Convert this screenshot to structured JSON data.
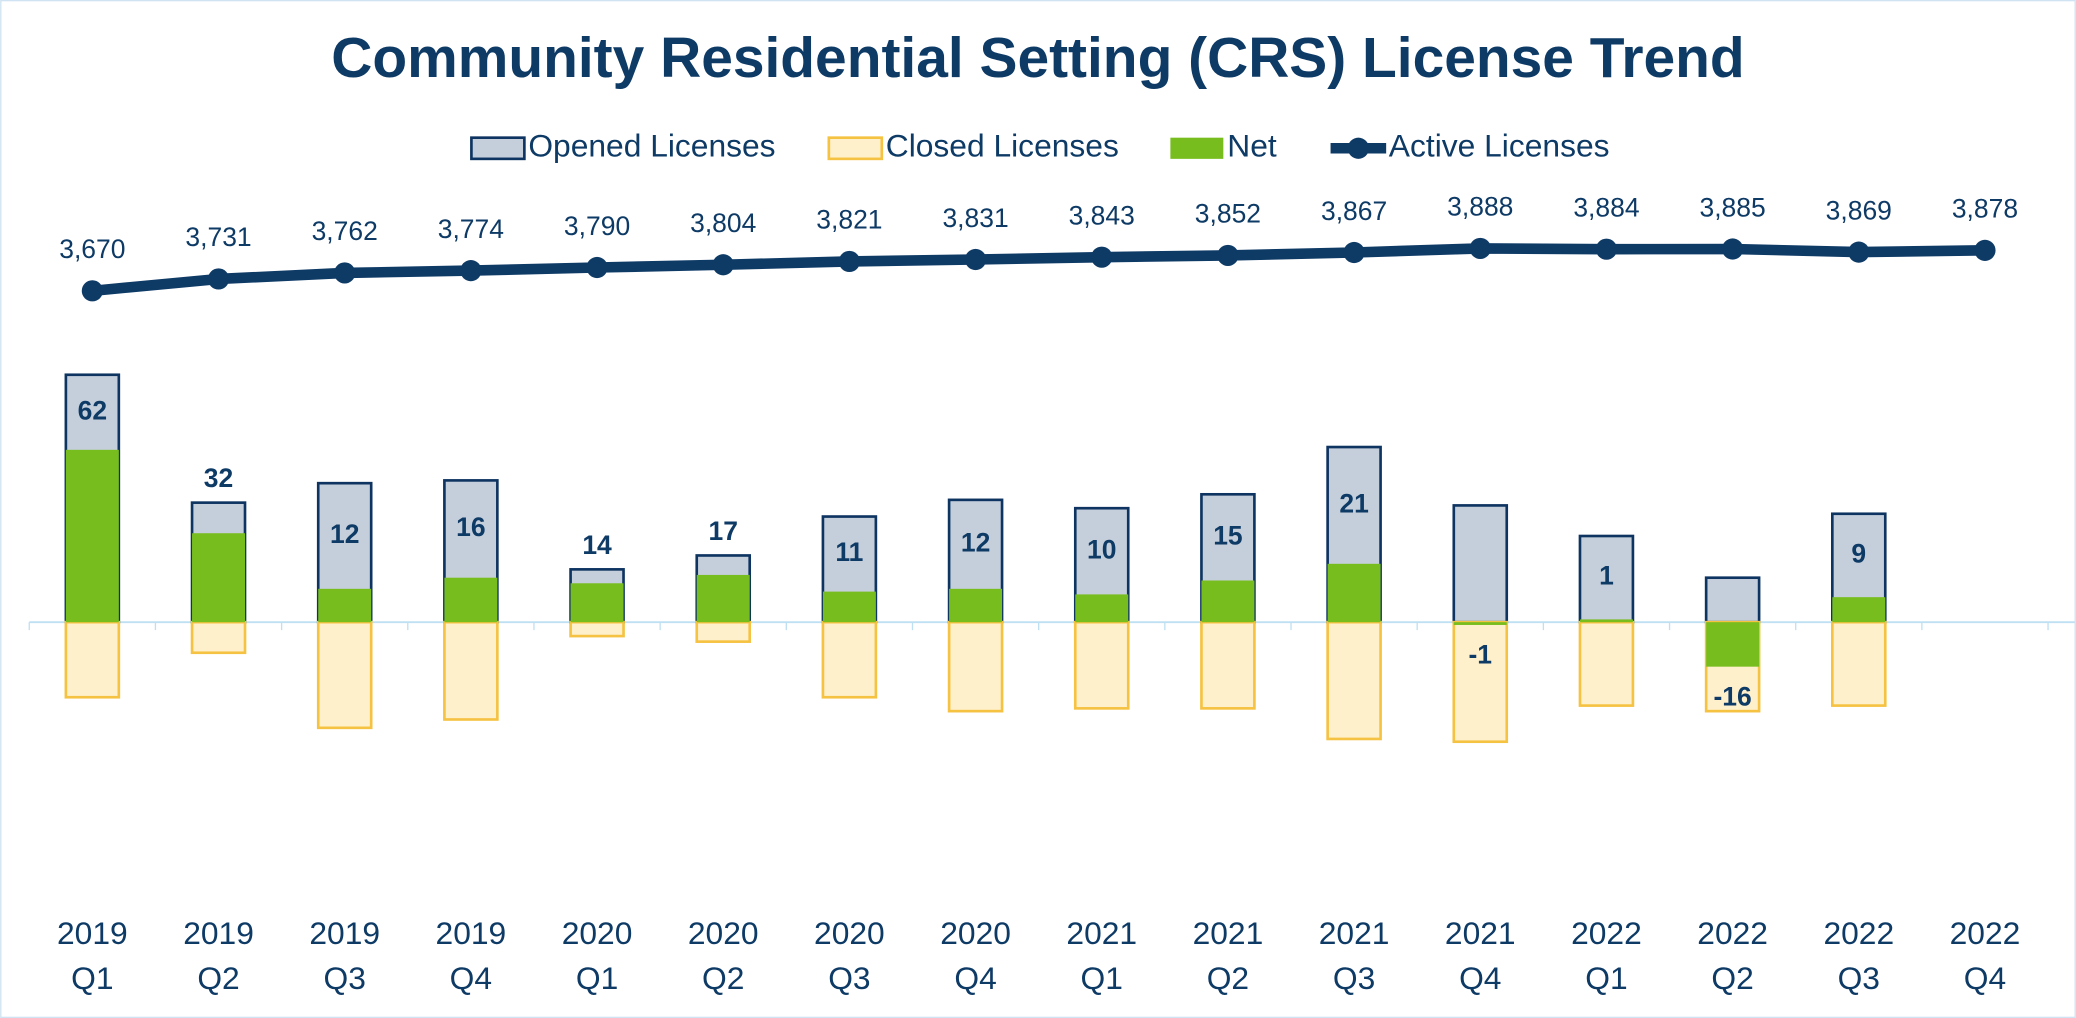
{
  "chart_data": {
    "type": "bar-line",
    "title": "Community Residential Setting (CRS) License Trend",
    "categories": [
      [
        "2019",
        "Q1"
      ],
      [
        "2019",
        "Q2"
      ],
      [
        "2019",
        "Q3"
      ],
      [
        "2019",
        "Q4"
      ],
      [
        "2020",
        "Q1"
      ],
      [
        "2020",
        "Q2"
      ],
      [
        "2020",
        "Q3"
      ],
      [
        "2020",
        "Q4"
      ],
      [
        "2021",
        "Q1"
      ],
      [
        "2021",
        "Q2"
      ],
      [
        "2021",
        "Q3"
      ],
      [
        "2021",
        "Q4"
      ],
      [
        "2022",
        "Q1"
      ],
      [
        "2022",
        "Q2"
      ],
      [
        "2022",
        "Q3"
      ],
      [
        "2022",
        "Q4"
      ]
    ],
    "ylim": [
      -100,
      150
    ],
    "y2lim": [
      540,
      4110
    ],
    "series": [
      {
        "name": "Opened Licenses",
        "color": "#c5cfdb",
        "stroke": "#0e3461",
        "values": [
          89,
          43,
          50,
          51,
          19,
          24,
          38,
          44,
          41,
          46,
          63,
          42,
          31,
          16,
          39,
          null
        ]
      },
      {
        "name": "Closed Licenses",
        "color": "#fff0cc",
        "stroke": "#f5c242",
        "values": [
          -27,
          -11,
          -38,
          -35,
          -5,
          -7,
          -27,
          -32,
          -31,
          -31,
          -42,
          -43,
          -30,
          -32,
          -30,
          null
        ]
      },
      {
        "name": "Net",
        "color": "#78bd1e",
        "values": [
          62,
          32,
          12,
          16,
          14,
          17,
          11,
          12,
          10,
          15,
          21,
          -1,
          1,
          -16,
          9,
          null
        ]
      },
      {
        "name": "Active Licenses",
        "color": "#0e3a66",
        "axis": "y2",
        "values": [
          3670,
          3731,
          3762,
          3774,
          3790,
          3804,
          3821,
          3831,
          3843,
          3852,
          3867,
          3888,
          3884,
          3885,
          3869,
          3878
        ],
        "value_labels": [
          "3,670",
          "3,731",
          "3,762",
          "3,774",
          "3,790",
          "3,804",
          "3,821",
          "3,831",
          "3,843",
          "3,852",
          "3,867",
          "3,888",
          "3,884",
          "3,885",
          "3,869",
          "3,878"
        ]
      }
    ]
  }
}
